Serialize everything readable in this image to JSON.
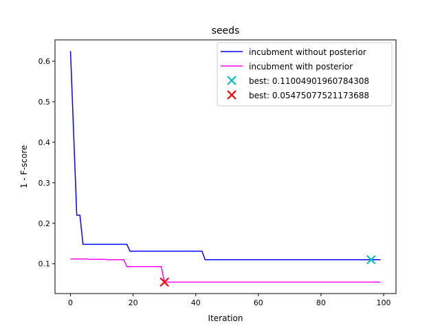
{
  "chart_data": {
    "type": "line",
    "title": "seeds",
    "xlabel": "Iteration",
    "ylabel": "1 - F-score",
    "xlim": [
      -4.95,
      103.95
    ],
    "ylim": [
      0.0265,
      0.6527
    ],
    "x_ticks": [
      0,
      20,
      40,
      60,
      80,
      100
    ],
    "y_ticks": [
      0.1,
      0.2,
      0.3,
      0.4,
      0.5,
      0.6
    ],
    "x_tick_labels": [
      "0",
      "20",
      "40",
      "60",
      "80",
      "100"
    ],
    "y_tick_labels": [
      "0.1",
      "0.2",
      "0.3",
      "0.4",
      "0.5",
      "0.6"
    ],
    "grid": false,
    "legend_position": "upper right",
    "series": [
      {
        "name": "incubment without posterior",
        "color": "#0000ff",
        "points": [
          [
            0,
            0.625
          ],
          [
            2,
            0.22
          ],
          [
            3,
            0.22
          ],
          [
            4,
            0.148
          ],
          [
            18,
            0.148
          ],
          [
            19,
            0.131
          ],
          [
            42,
            0.131
          ],
          [
            43,
            0.11
          ],
          [
            99,
            0.11
          ]
        ]
      },
      {
        "name": "incubment with posterior",
        "color": "#ff00ff",
        "points": [
          [
            0,
            0.112
          ],
          [
            5,
            0.112
          ],
          [
            6,
            0.111
          ],
          [
            11,
            0.111
          ],
          [
            12,
            0.11
          ],
          [
            17,
            0.11
          ],
          [
            18,
            0.093
          ],
          [
            29,
            0.093
          ],
          [
            30,
            0.0548
          ],
          [
            99,
            0.0548
          ]
        ]
      }
    ],
    "markers": [
      {
        "name": "best: 0.11004901960784308",
        "x": 96,
        "y": 0.11005,
        "color": "#00bfbf",
        "symbol": "x"
      },
      {
        "name": "best: 0.05475077521173688",
        "x": 30,
        "y": 0.05475,
        "color": "#ff0000",
        "symbol": "x"
      }
    ]
  }
}
